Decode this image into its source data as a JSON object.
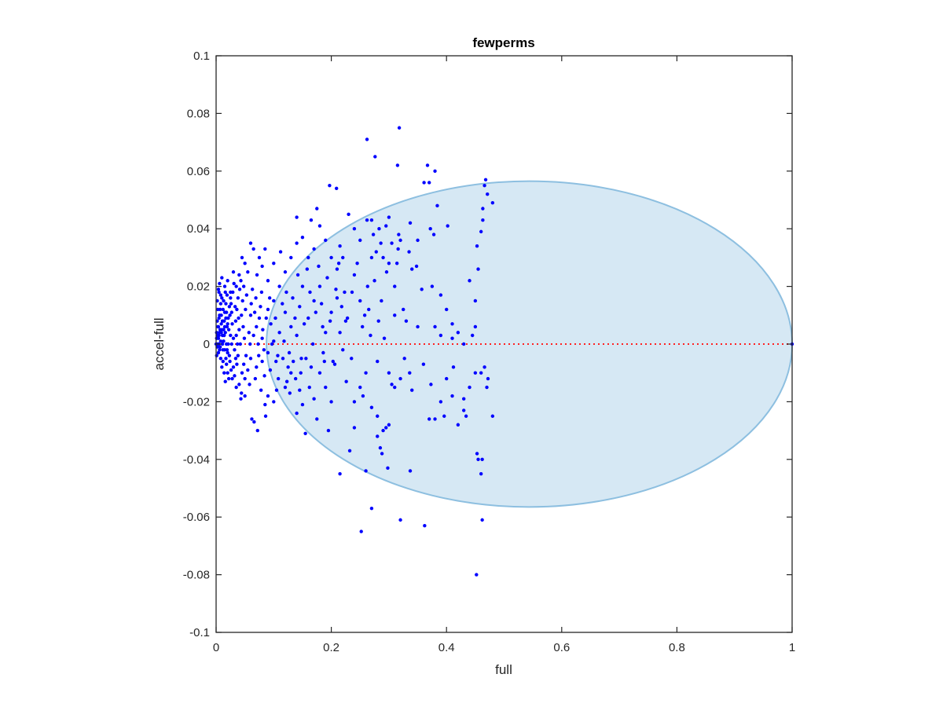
{
  "chart_data": {
    "type": "scatter",
    "title": "fewperms",
    "xlabel": "full",
    "ylabel": "accel-full",
    "xlim": [
      0,
      1
    ],
    "ylim": [
      -0.1,
      0.1
    ],
    "xticks": [
      0,
      0.2,
      0.4,
      0.6,
      0.8,
      1
    ],
    "xtick_labels": [
      "0",
      "0.2",
      "0.4",
      "0.6",
      "0.8",
      "1"
    ],
    "yticks": [
      -0.1,
      -0.08,
      -0.06,
      -0.04,
      -0.02,
      0,
      0.02,
      0.04,
      0.06,
      0.08,
      0.1
    ],
    "ytick_labels": [
      "-0.1",
      "-0.08",
      "-0.06",
      "-0.04",
      "-0.02",
      "0",
      "0.02",
      "0.04",
      "0.06",
      "0.08",
      "0.1"
    ],
    "grid": false,
    "colors": {
      "points": "#0000ff",
      "region_fill": "#d6e8f4",
      "region_stroke": "#8dbfe0",
      "reference_line": "#ff2020",
      "axes": "#262626"
    },
    "reference_line": {
      "y": 0,
      "style": "dotted"
    },
    "region": {
      "shape": "ellipse",
      "cx": 0.5437,
      "cy": 0,
      "rx": 0.4563,
      "ry": 0.0565
    },
    "points": [
      [
        0.262,
        0.071
      ],
      [
        0.318,
        0.075
      ],
      [
        0.276,
        0.065
      ],
      [
        0.315,
        0.062
      ],
      [
        0.367,
        0.062
      ],
      [
        0.38,
        0.06
      ],
      [
        0.197,
        0.055
      ],
      [
        0.209,
        0.054
      ],
      [
        0.361,
        0.056
      ],
      [
        0.37,
        0.056
      ],
      [
        0.468,
        0.057
      ],
      [
        0.466,
        0.055
      ],
      [
        0.471,
        0.052
      ],
      [
        0.48,
        0.049
      ],
      [
        0.384,
        0.048
      ],
      [
        0.463,
        0.047
      ],
      [
        0.463,
        0.043
      ],
      [
        0.402,
        0.041
      ],
      [
        0.372,
        0.04
      ],
      [
        0.378,
        0.038
      ],
      [
        0.46,
        0.039
      ],
      [
        0.262,
        0.043
      ],
      [
        0.27,
        0.043
      ],
      [
        0.3,
        0.044
      ],
      [
        0.295,
        0.041
      ],
      [
        0.337,
        0.042
      ],
      [
        0.317,
        0.038
      ],
      [
        0.35,
        0.036
      ],
      [
        0.335,
        0.032
      ],
      [
        0.348,
        0.027
      ],
      [
        0.32,
        0.036
      ],
      [
        0.316,
        0.033
      ],
      [
        0.286,
        0.035
      ],
      [
        0.27,
        0.03
      ],
      [
        0.23,
        0.045
      ],
      [
        0.24,
        0.04
      ],
      [
        0.25,
        0.036
      ],
      [
        0.215,
        0.034
      ],
      [
        0.22,
        0.03
      ],
      [
        0.21,
        0.026
      ],
      [
        0.24,
        0.024
      ],
      [
        0.245,
        0.028
      ],
      [
        0.263,
        0.02
      ],
      [
        0.25,
        0.015
      ],
      [
        0.236,
        0.018
      ],
      [
        0.3,
        0.028
      ],
      [
        0.31,
        0.02
      ],
      [
        0.34,
        0.026
      ],
      [
        0.357,
        0.019
      ],
      [
        0.325,
        0.012
      ],
      [
        0.33,
        0.008
      ],
      [
        0.35,
        0.006
      ],
      [
        0.375,
        0.02
      ],
      [
        0.39,
        0.017
      ],
      [
        0.4,
        0.012
      ],
      [
        0.38,
        0.006
      ],
      [
        0.39,
        0.003
      ],
      [
        0.453,
        0.034
      ],
      [
        0.455,
        0.026
      ],
      [
        0.44,
        0.022
      ],
      [
        0.45,
        0.015
      ],
      [
        0.45,
        0.006
      ],
      [
        0.445,
        0.003
      ],
      [
        0.41,
        0.007
      ],
      [
        0.41,
        0.002
      ],
      [
        0.42,
        0.004
      ],
      [
        0.43,
        0.0
      ],
      [
        0.466,
        -0.008
      ],
      [
        0.472,
        -0.012
      ],
      [
        0.46,
        -0.01
      ],
      [
        0.47,
        -0.015
      ],
      [
        0.45,
        -0.01
      ],
      [
        0.44,
        -0.015
      ],
      [
        0.43,
        -0.019
      ],
      [
        0.412,
        -0.008
      ],
      [
        0.43,
        -0.023
      ],
      [
        0.434,
        -0.025
      ],
      [
        0.42,
        -0.028
      ],
      [
        0.39,
        -0.02
      ],
      [
        0.396,
        -0.025
      ],
      [
        0.38,
        -0.026
      ],
      [
        0.37,
        -0.026
      ],
      [
        0.48,
        -0.025
      ],
      [
        0.41,
        -0.018
      ],
      [
        0.4,
        -0.012
      ],
      [
        0.36,
        -0.007
      ],
      [
        0.373,
        -0.014
      ],
      [
        0.3,
        -0.01
      ],
      [
        0.305,
        -0.014
      ],
      [
        0.31,
        -0.015
      ],
      [
        0.32,
        -0.012
      ],
      [
        0.327,
        -0.005
      ],
      [
        0.336,
        -0.01
      ],
      [
        0.34,
        -0.016
      ],
      [
        0.3,
        -0.028
      ],
      [
        0.29,
        -0.03
      ],
      [
        0.295,
        -0.029
      ],
      [
        0.28,
        -0.032
      ],
      [
        0.285,
        -0.036
      ],
      [
        0.288,
        -0.038
      ],
      [
        0.27,
        -0.022
      ],
      [
        0.28,
        -0.025
      ],
      [
        0.25,
        -0.015
      ],
      [
        0.255,
        -0.018
      ],
      [
        0.24,
        -0.02
      ],
      [
        0.26,
        -0.01
      ],
      [
        0.235,
        -0.005
      ],
      [
        0.24,
        -0.029
      ],
      [
        0.232,
        -0.037
      ],
      [
        0.252,
        -0.065
      ],
      [
        0.26,
        -0.044
      ],
      [
        0.27,
        -0.057
      ],
      [
        0.298,
        -0.043
      ],
      [
        0.337,
        -0.044
      ],
      [
        0.32,
        -0.061
      ],
      [
        0.362,
        -0.063
      ],
      [
        0.453,
        -0.038
      ],
      [
        0.455,
        -0.04
      ],
      [
        0.462,
        -0.04
      ],
      [
        0.46,
        -0.045
      ],
      [
        0.462,
        -0.061
      ],
      [
        0.452,
        -0.08
      ],
      [
        0.215,
        -0.045
      ],
      [
        0.195,
        -0.03
      ],
      [
        0.2,
        -0.02
      ],
      [
        0.19,
        -0.015
      ],
      [
        0.18,
        -0.01
      ],
      [
        0.175,
        -0.026
      ],
      [
        0.17,
        -0.019
      ],
      [
        0.165,
        -0.008
      ],
      [
        0.155,
        -0.031
      ],
      [
        0.15,
        -0.021
      ],
      [
        0.14,
        -0.024
      ],
      [
        0.145,
        -0.016
      ],
      [
        0.13,
        -0.01
      ],
      [
        0.125,
        -0.008
      ],
      [
        0.12,
        -0.015
      ],
      [
        0.105,
        -0.016
      ],
      [
        0.1,
        -0.02
      ],
      [
        0.09,
        -0.018
      ],
      [
        0.085,
        -0.021
      ],
      [
        0.086,
        -0.025
      ],
      [
        0.072,
        -0.03
      ],
      [
        0.066,
        -0.027
      ],
      [
        0.062,
        -0.026
      ],
      [
        0.05,
        -0.018
      ],
      [
        0.043,
        -0.019
      ],
      [
        0.04,
        -0.014
      ],
      [
        0.035,
        -0.015
      ],
      [
        0.11,
        0.004
      ],
      [
        0.1,
        0.001
      ],
      [
        0.09,
        -0.003
      ],
      [
        0.08,
        -0.006
      ],
      [
        0.07,
        -0.008
      ],
      [
        0.06,
        -0.005
      ],
      [
        0.055,
        -0.009
      ],
      [
        0.05,
        -0.012
      ],
      [
        0.045,
        -0.01
      ],
      [
        0.06,
        0.01
      ],
      [
        0.07,
        0.006
      ],
      [
        0.08,
        0.002
      ],
      [
        0.09,
        0.012
      ],
      [
        0.095,
        0.007
      ],
      [
        0.1,
        0.015
      ],
      [
        0.11,
        0.02
      ],
      [
        0.12,
        0.011
      ],
      [
        0.13,
        0.006
      ],
      [
        0.14,
        0.003
      ],
      [
        0.145,
        0.013
      ],
      [
        0.15,
        0.02
      ],
      [
        0.16,
        0.009
      ],
      [
        0.17,
        0.015
      ],
      [
        0.18,
        0.02
      ],
      [
        0.185,
        0.006
      ],
      [
        0.19,
        0.004
      ],
      [
        0.2,
        0.011
      ],
      [
        0.21,
        0.016
      ],
      [
        0.215,
        0.004
      ],
      [
        0.22,
        -0.002
      ],
      [
        0.225,
        0.008
      ],
      [
        0.12,
        0.025
      ],
      [
        0.13,
        0.03
      ],
      [
        0.14,
        0.035
      ],
      [
        0.15,
        0.037
      ],
      [
        0.16,
        0.03
      ],
      [
        0.17,
        0.033
      ],
      [
        0.18,
        0.041
      ],
      [
        0.19,
        0.036
      ],
      [
        0.2,
        0.03
      ],
      [
        0.175,
        0.047
      ],
      [
        0.165,
        0.043
      ],
      [
        0.14,
        0.044
      ],
      [
        0.112,
        0.032
      ],
      [
        0.1,
        0.028
      ],
      [
        0.09,
        0.022
      ],
      [
        0.085,
        0.033
      ],
      [
        0.08,
        0.027
      ],
      [
        0.075,
        0.03
      ],
      [
        0.065,
        0.033
      ],
      [
        0.06,
        0.035
      ],
      [
        0.055,
        0.025
      ],
      [
        0.05,
        0.028
      ],
      [
        0.045,
        0.03
      ],
      [
        0.04,
        0.024
      ],
      [
        0.035,
        0.02
      ],
      [
        0.03,
        0.025
      ],
      [
        0.025,
        0.018
      ],
      [
        0.02,
        0.022
      ],
      [
        0.015,
        0.02
      ],
      [
        0.01,
        0.023
      ],
      [
        0.005,
        0.018
      ],
      [
        0.003,
        0.012
      ],
      [
        0.002,
        0.008
      ],
      [
        0.001,
        0.004
      ],
      [
        0.0,
        0.0
      ],
      [
        0.001,
        -0.004
      ],
      [
        0.003,
        0.0
      ],
      [
        0.004,
        0.006
      ],
      [
        0.006,
        0.01
      ],
      [
        0.008,
        0.014
      ],
      [
        0.01,
        0.016
      ],
      [
        0.012,
        0.012
      ],
      [
        0.014,
        0.008
      ],
      [
        0.016,
        0.004
      ],
      [
        0.018,
        0.0
      ],
      [
        0.02,
        -0.003
      ],
      [
        0.022,
        0.005
      ],
      [
        0.024,
        0.01
      ],
      [
        0.026,
        0.014
      ],
      [
        0.028,
        0.007
      ],
      [
        0.03,
        0.002
      ],
      [
        0.032,
        -0.002
      ],
      [
        0.034,
        0.008
      ],
      [
        0.036,
        0.012
      ],
      [
        0.038,
        0.016
      ],
      [
        0.04,
        0.005
      ],
      [
        0.042,
        0.0
      ],
      [
        0.044,
        0.01
      ],
      [
        0.046,
        0.015
      ],
      [
        0.048,
        0.02
      ],
      [
        0.005,
        0.003
      ],
      [
        0.007,
        0.005
      ],
      [
        0.009,
        0.007
      ],
      [
        0.011,
        0.003
      ],
      [
        0.013,
        0.001
      ],
      [
        0.015,
        -0.002
      ],
      [
        0.017,
        -0.005
      ],
      [
        0.019,
        0.006
      ],
      [
        0.021,
        0.009
      ],
      [
        0.023,
        0.013
      ],
      [
        0.025,
        0.016
      ],
      [
        0.027,
        0.011
      ],
      [
        0.004,
        0.002
      ],
      [
        0.006,
        -0.002
      ],
      [
        0.008,
        -0.005
      ],
      [
        0.01,
        -0.008
      ],
      [
        0.012,
        -0.006
      ],
      [
        0.014,
        -0.01
      ],
      [
        0.016,
        -0.013
      ],
      [
        0.018,
        -0.007
      ],
      [
        0.02,
        -0.01
      ],
      [
        0.022,
        -0.012
      ],
      [
        0.024,
        -0.006
      ],
      [
        0.026,
        -0.009
      ],
      [
        0.028,
        -0.012
      ],
      [
        0.03,
        -0.008
      ],
      [
        0.032,
        -0.011
      ],
      [
        0.034,
        -0.005
      ],
      [
        0.036,
        -0.007
      ],
      [
        0.038,
        -0.004
      ],
      [
        0.002,
        0.015
      ],
      [
        0.004,
        0.019
      ],
      [
        0.006,
        0.021
      ],
      [
        0.008,
        0.017
      ],
      [
        0.003,
        0.006
      ],
      [
        0.005,
        0.009
      ],
      [
        0.007,
        0.012
      ],
      [
        0.009,
        0.004
      ],
      [
        0.011,
        0.0
      ],
      [
        0.013,
        0.005
      ],
      [
        0.015,
        0.011
      ],
      [
        0.017,
        0.014
      ],
      [
        0.019,
        0.017
      ],
      [
        0.021,
        0.0
      ],
      [
        0.023,
        -0.004
      ],
      [
        0.025,
        0.003
      ],
      [
        0.027,
        0.0
      ],
      [
        0.029,
        0.018
      ],
      [
        0.031,
        0.021
      ],
      [
        0.033,
        0.013
      ],
      [
        0.035,
        0.003
      ],
      [
        0.037,
        0.0
      ],
      [
        0.039,
        0.009
      ],
      [
        0.041,
        0.019
      ],
      [
        0.043,
        0.022
      ],
      [
        0.047,
        0.006
      ],
      [
        0.049,
        0.002
      ],
      [
        0.051,
        0.012
      ],
      [
        0.053,
        0.017
      ],
      [
        0.057,
        0.004
      ],
      [
        0.059,
        0.0
      ],
      [
        0.061,
        0.014
      ],
      [
        0.063,
        0.019
      ],
      [
        0.065,
        0.003
      ],
      [
        0.067,
        0.011
      ],
      [
        0.069,
        0.016
      ],
      [
        0.071,
        0.024
      ],
      [
        0.073,
        0.0
      ],
      [
        0.075,
        0.009
      ],
      [
        0.077,
        0.013
      ],
      [
        0.079,
        0.018
      ],
      [
        0.081,
        0.005
      ],
      [
        0.083,
        -0.002
      ],
      [
        0.087,
        0.009
      ],
      [
        0.093,
        0.016
      ],
      [
        0.097,
        0.0
      ],
      [
        0.103,
        0.009
      ],
      [
        0.107,
        -0.004
      ],
      [
        0.115,
        0.014
      ],
      [
        0.118,
        0.001
      ],
      [
        0.122,
        0.018
      ],
      [
        0.127,
        -0.003
      ],
      [
        0.133,
        0.016
      ],
      [
        0.137,
        0.009
      ],
      [
        0.142,
        0.024
      ],
      [
        0.148,
        -0.005
      ],
      [
        0.153,
        0.007
      ],
      [
        0.158,
        0.026
      ],
      [
        0.163,
        0.018
      ],
      [
        0.168,
        0.0
      ],
      [
        0.173,
        0.011
      ],
      [
        0.178,
        0.027
      ],
      [
        0.183,
        0.014
      ],
      [
        0.188,
        -0.006
      ],
      [
        0.193,
        0.023
      ],
      [
        0.198,
        0.008
      ],
      [
        0.203,
        -0.006
      ],
      [
        0.208,
        0.019
      ],
      [
        0.213,
        0.028
      ],
      [
        0.218,
        0.013
      ],
      [
        0.223,
        0.018
      ],
      [
        0.228,
        0.009
      ],
      [
        0.058,
        -0.014
      ],
      [
        0.052,
        -0.004
      ],
      [
        0.048,
        -0.007
      ],
      [
        0.044,
        -0.017
      ],
      [
        0.068,
        -0.012
      ],
      [
        0.074,
        -0.004
      ],
      [
        0.078,
        -0.016
      ],
      [
        0.084,
        -0.011
      ],
      [
        0.094,
        -0.009
      ],
      [
        0.104,
        -0.006
      ],
      [
        0.108,
        -0.012
      ],
      [
        0.116,
        -0.005
      ],
      [
        0.123,
        -0.013
      ],
      [
        0.128,
        -0.017
      ],
      [
        0.134,
        -0.006
      ],
      [
        0.138,
        -0.012
      ],
      [
        0.147,
        -0.01
      ],
      [
        0.156,
        -0.005
      ],
      [
        0.162,
        -0.015
      ],
      [
        0.186,
        -0.003
      ],
      [
        0.206,
        -0.007
      ],
      [
        0.226,
        -0.013
      ],
      [
        0.254,
        0.006
      ],
      [
        0.258,
        0.01
      ],
      [
        0.265,
        0.012
      ],
      [
        0.268,
        0.003
      ],
      [
        0.275,
        0.022
      ],
      [
        0.282,
        0.008
      ],
      [
        0.287,
        0.015
      ],
      [
        0.292,
        0.002
      ],
      [
        0.28,
        -0.006
      ],
      [
        0.29,
        0.03
      ],
      [
        0.296,
        0.025
      ],
      [
        0.305,
        0.035
      ],
      [
        0.31,
        0.01
      ],
      [
        0.314,
        0.028
      ],
      [
        0.273,
        0.038
      ],
      [
        0.278,
        0.032
      ],
      [
        0.283,
        0.04
      ],
      [
        0.001,
        0.002
      ],
      [
        0.002,
        -0.001
      ],
      [
        0.003,
        0.003
      ],
      [
        0.004,
        -0.003
      ],
      [
        0.005,
        0.0
      ],
      [
        0.006,
        0.004
      ],
      [
        0.007,
        -0.001
      ],
      [
        0.008,
        0.001
      ],
      [
        0.009,
        0.01
      ],
      [
        0.01,
        0.005
      ],
      [
        0.011,
        0.008
      ],
      [
        0.012,
        -0.002
      ],
      [
        0.013,
        0.015
      ],
      [
        0.014,
        0.003
      ],
      [
        0.015,
        0.006
      ],
      [
        0.016,
        0.018
      ],
      [
        0.017,
        0.009
      ],
      [
        0.018,
        0.011
      ],
      [
        0.019,
        -0.002
      ],
      [
        0.02,
        0.007
      ],
      [
        1.0,
        0.0
      ]
    ]
  }
}
